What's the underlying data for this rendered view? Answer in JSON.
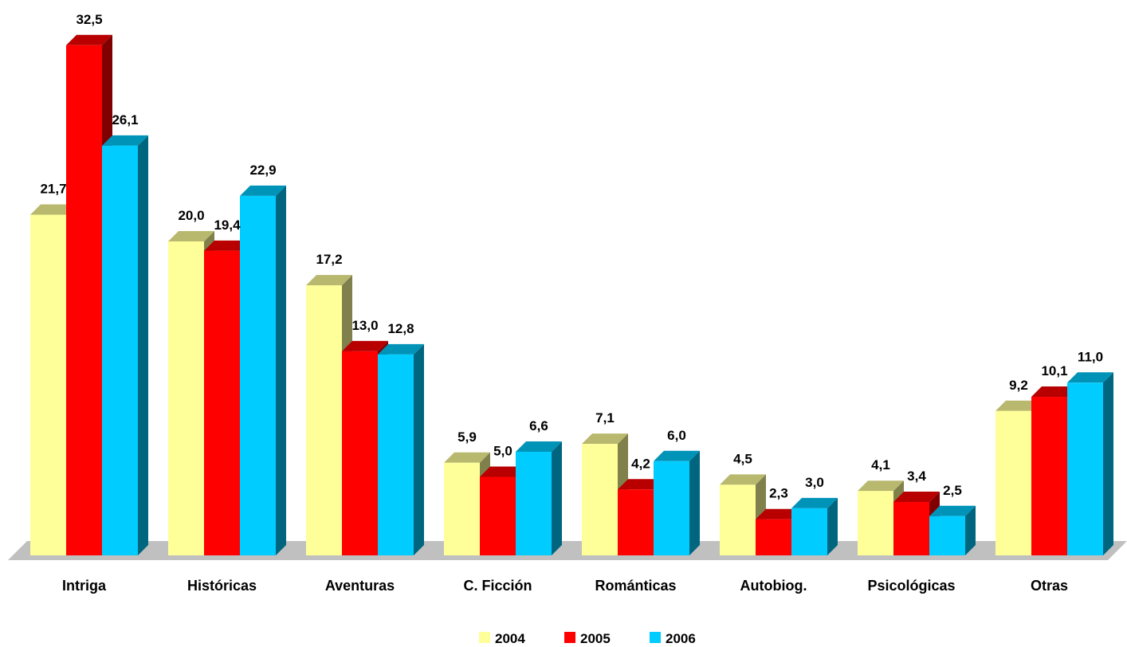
{
  "chart_data": {
    "type": "bar",
    "title": "",
    "xlabel": "",
    "ylabel": "",
    "ylim": [
      0,
      35
    ],
    "grid": false,
    "legend_position": "bottom-center",
    "categories": [
      "Intriga",
      "Históricas",
      "Aventuras",
      "C. Ficción",
      "Románticas",
      "Autobiog.",
      "Psicológicas",
      "Otras"
    ],
    "series": [
      {
        "name": "2004",
        "color": "#FFFF99",
        "values": [
          21.7,
          20.0,
          17.2,
          5.9,
          7.1,
          4.5,
          4.1,
          9.2
        ],
        "labels": [
          "21,7",
          "20,0",
          "17,2",
          "5,9",
          "7,1",
          "4,5",
          "4,1",
          "9,2"
        ]
      },
      {
        "name": "2005",
        "color": "#FF0000",
        "values": [
          32.5,
          19.4,
          13.0,
          5.0,
          4.2,
          2.3,
          3.4,
          10.1
        ],
        "labels": [
          "32,5",
          "19,4",
          "13,0",
          "5,0",
          "4,2",
          "2,3",
          "3,4",
          "10,1"
        ]
      },
      {
        "name": "2006",
        "color": "#00CCFF",
        "values": [
          26.1,
          22.9,
          12.8,
          6.6,
          6.0,
          3.0,
          2.5,
          11.0
        ],
        "labels": [
          "26,1",
          "22,9",
          "12,8",
          "6,6",
          "6,0",
          "3,0",
          "2,5",
          "11,0"
        ]
      }
    ]
  }
}
